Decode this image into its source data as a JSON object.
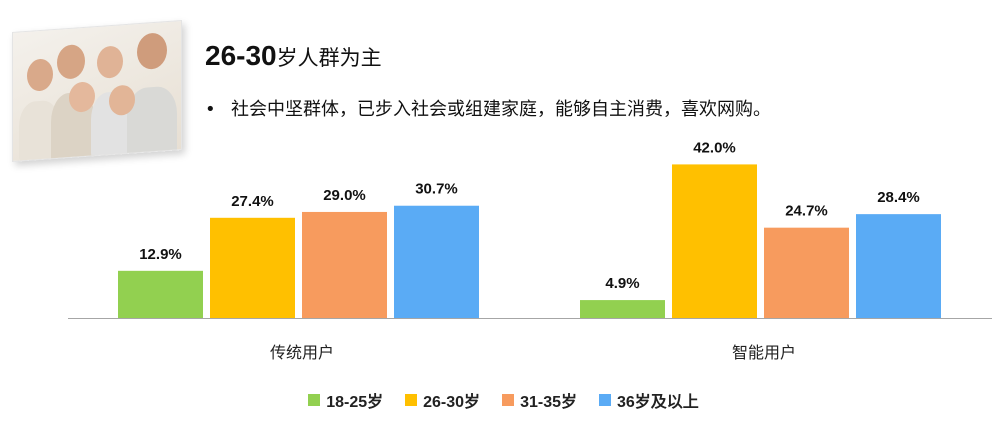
{
  "header": {
    "title_bold": "26-30",
    "title_rest": "岁人群为主",
    "bullet_symbol": "•",
    "bullet_text": "社会中坚群体，已步入社会或组建家庭，能够自主消费，喜欢网购。"
  },
  "colors": {
    "18-25": "#92d050",
    "26-30": "#ffc000",
    "31-35": "#f79b5e",
    "36plus": "#5aabf5"
  },
  "chart_data": {
    "type": "bar",
    "categories": [
      "传统用户",
      "智能用户"
    ],
    "series": [
      {
        "name": "18-25岁",
        "values": [
          12.9,
          4.9
        ],
        "labels": [
          "12.9%",
          "4.9%"
        ],
        "color": "#92d050"
      },
      {
        "name": "26-30岁",
        "values": [
          27.4,
          42.0
        ],
        "labels": [
          "27.4%",
          "42.0%"
        ],
        "color": "#ffc000"
      },
      {
        "name": "31-35岁",
        "values": [
          29.0,
          24.7
        ],
        "labels": [
          "29.0%",
          "24.7%"
        ],
        "color": "#f79b5e"
      },
      {
        "name": "36岁及以上",
        "values": [
          30.7,
          28.4
        ],
        "labels": [
          "30.7%",
          "28.4%"
        ],
        "color": "#5aabf5"
      }
    ],
    "legend_position": "bottom",
    "grid": false
  }
}
